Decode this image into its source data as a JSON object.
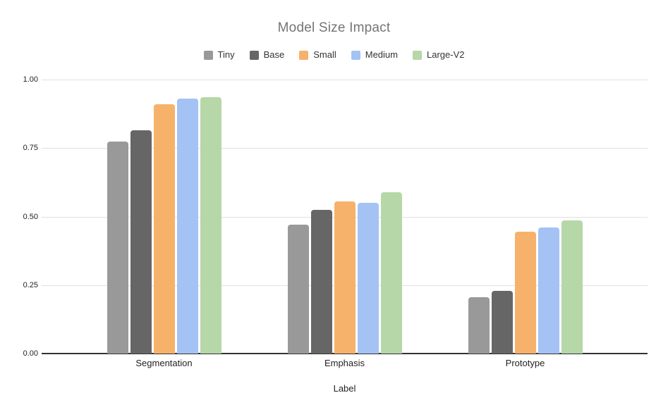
{
  "chart_data": {
    "type": "bar",
    "title": "Model Size Impact",
    "xlabel": "Label",
    "ylabel": "",
    "ylim": [
      0,
      1
    ],
    "yticks": [
      {
        "label": "0.00",
        "value": 0.0
      },
      {
        "label": "0.25",
        "value": 0.25
      },
      {
        "label": "0.50",
        "value": 0.5
      },
      {
        "label": "0.75",
        "value": 0.75
      },
      {
        "label": "1.00",
        "value": 1.0
      }
    ],
    "categories": [
      "Segmentation",
      "Emphasis",
      "Prototype"
    ],
    "series": [
      {
        "name": "Tiny",
        "color": "#999999",
        "values": [
          0.775,
          0.47,
          0.205
        ]
      },
      {
        "name": "Base",
        "color": "#666666",
        "values": [
          0.815,
          0.525,
          0.23
        ]
      },
      {
        "name": "Small",
        "color": "#f6b26b",
        "values": [
          0.91,
          0.555,
          0.445
        ]
      },
      {
        "name": "Medium",
        "color": "#a4c2f4",
        "values": [
          0.93,
          0.55,
          0.46
        ]
      },
      {
        "name": "Large-V2",
        "color": "#b6d7a8",
        "values": [
          0.935,
          0.59,
          0.485
        ]
      }
    ],
    "legend_position": "top",
    "grid": true,
    "grid_color": "#e0e0e0",
    "title_color": "#757575"
  }
}
